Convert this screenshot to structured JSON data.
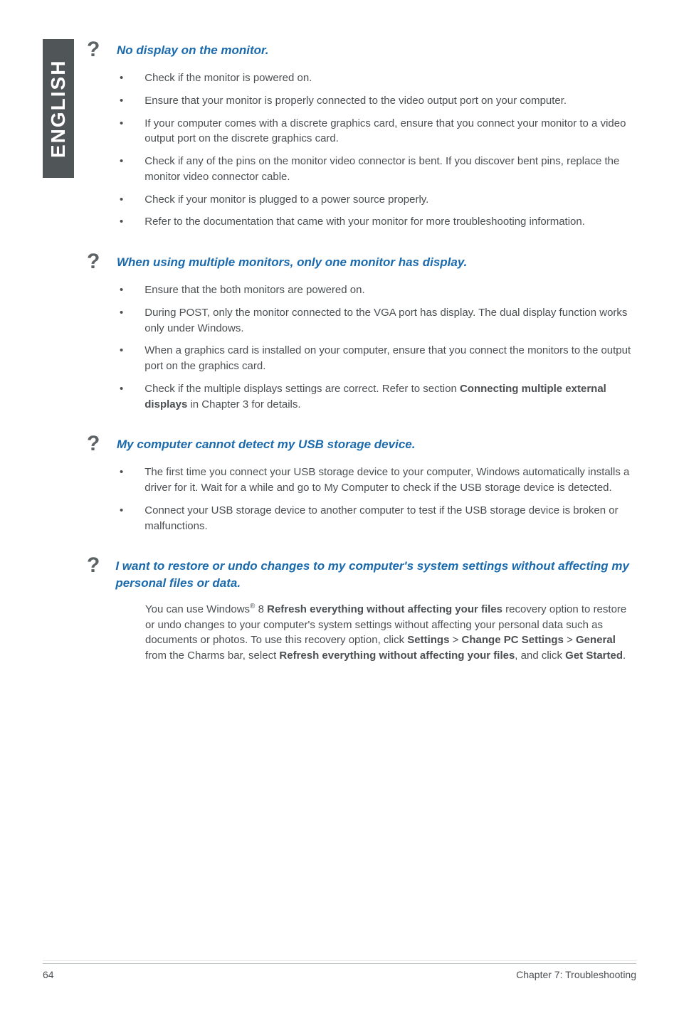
{
  "sideTab": "ENGLISH",
  "sections": [
    {
      "title": "No display on the monitor.",
      "items": [
        "Check if the monitor is powered on.",
        "Ensure that your monitor is properly connected to the video output port on your computer.",
        "If your computer comes with a discrete graphics card, ensure that you connect your monitor to a video output port on the discrete graphics card.",
        "Check if any of the pins on the monitor video connector is bent. If you discover bent pins, replace the monitor video connector cable.",
        "Check if your monitor is plugged to a power source properly.",
        "Refer to the documentation that came with your monitor for more troubleshooting information."
      ]
    },
    {
      "title": "When using multiple monitors, only one monitor has display.",
      "items": [
        "Ensure that the both monitors are powered on.",
        "During POST, only the monitor connected to the VGA port has display. The dual display function works only under Windows.",
        "When a graphics card is installed on your computer, ensure that you connect the monitors to the output port on the graphics card."
      ],
      "lastItemPrefix": "Check if the multiple displays settings are correct. Refer to section ",
      "lastItemBold": "Connecting multiple external displays",
      "lastItemSuffix": " in Chapter 3 for details."
    },
    {
      "title": "My computer cannot detect my USB storage device.",
      "items": [
        "The first time you connect your USB storage device to your computer, Windows automatically installs a driver for it. Wait for a while and go to My Computer to check if the USB storage device is detected.",
        "Connect your USB storage device to another computer to test if the USB storage device is broken or malfunctions."
      ]
    },
    {
      "title": "I want to restore or undo changes to my computer's system settings without affecting my personal files or data.",
      "para": {
        "p1": "You can use Windows",
        "sup": "®",
        "p2": " 8 ",
        "b1": "Refresh everything without affecting your files",
        "p3": " recovery option to restore or undo changes to your computer's system settings without affecting your personal data such as documents or photos. To use this recovery option, click ",
        "b2": "Settings",
        "gt1": " > ",
        "b3": "Change PC Settings",
        "gt2": " > ",
        "b4": "General",
        "p4": " from the Charms bar, select ",
        "b5": "Refresh everything without affecting your files",
        "p5": ", and click ",
        "b6": "Get Started",
        "p6": "."
      }
    }
  ],
  "footer": {
    "page": "64",
    "chapter": "Chapter 7: Troubleshooting"
  },
  "colors": {
    "sideTabBg": "#505558",
    "titleColor": "#1a6aae",
    "bodyText": "#4b4f52"
  }
}
